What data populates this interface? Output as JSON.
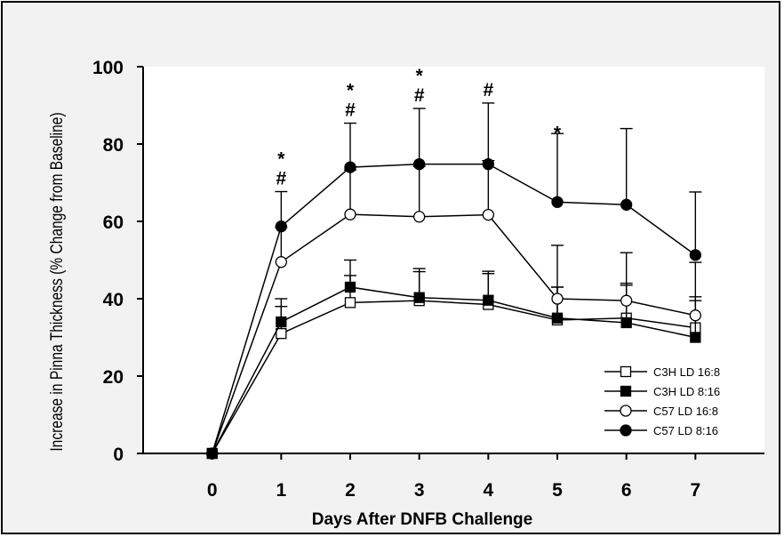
{
  "chart_data": {
    "type": "line",
    "title": "",
    "xlabel": "Days After DNFB Challenge",
    "ylabel": "Increase in Pinna Thickness (% Change from Baseline)",
    "x": [
      0,
      1,
      2,
      3,
      4,
      5,
      6,
      7
    ],
    "x_tick_labels": [
      "0",
      "1",
      "2",
      "3",
      "4",
      "5",
      "6",
      "7"
    ],
    "y_tick_labels": [
      "0",
      "20",
      "40",
      "60",
      "80",
      "100"
    ],
    "xlim": [
      -1,
      8
    ],
    "ylim": [
      0,
      100
    ],
    "grid": false,
    "legend_position": "bottom-right",
    "series": [
      {
        "name": "C3H LD 16:8",
        "marker": "open-square",
        "values": [
          0,
          31,
          39,
          39.5,
          38.5,
          34.5,
          35,
          32.5
        ],
        "err_plus": [
          0,
          7,
          7,
          7.5,
          8,
          8.5,
          8.5,
          8
        ]
      },
      {
        "name": "C3H LD 8:16",
        "marker": "filled-square",
        "values": [
          0,
          34,
          43,
          40.3,
          39.6,
          35,
          33.8,
          30
        ],
        "err_plus": [
          0,
          6,
          7,
          7.5,
          7.5,
          8,
          10.2,
          9.5
        ]
      },
      {
        "name": "C57 LD 16:8",
        "marker": "open-circle",
        "values": [
          0,
          49.5,
          61.8,
          61.2,
          61.7,
          40,
          39.5,
          35.7
        ],
        "err_plus": [
          0,
          9,
          11.5,
          13,
          14,
          13.8,
          12.4,
          13.7
        ]
      },
      {
        "name": "C57 LD 8:16",
        "marker": "filled-circle",
        "values": [
          0,
          58.7,
          74,
          74.8,
          74.8,
          65,
          64.3,
          51.3
        ],
        "err_plus": [
          0,
          9,
          11.4,
          14.4,
          15.8,
          17.7,
          19.7,
          16.3
        ]
      }
    ],
    "annotations": [
      {
        "x": 1,
        "hash": "#",
        "star": "*"
      },
      {
        "x": 2,
        "hash": "#",
        "star": "*"
      },
      {
        "x": 3,
        "hash": "#",
        "star": "*"
      },
      {
        "x": 4,
        "hash": "#",
        "star": ""
      },
      {
        "x": 5,
        "hash": "",
        "star": "*"
      }
    ]
  }
}
